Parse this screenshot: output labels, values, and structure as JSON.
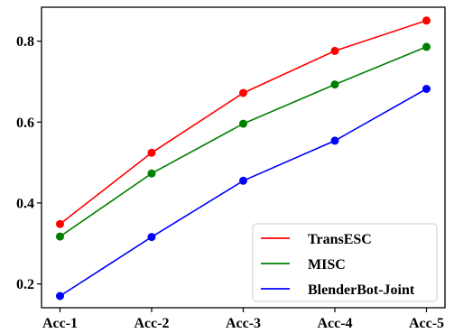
{
  "chart_data": {
    "type": "line",
    "categories": [
      "Acc-1",
      "Acc-2",
      "Acc-3",
      "Acc-4",
      "Acc-5"
    ],
    "series": [
      {
        "name": "TransESC",
        "color": "#ff0000",
        "values": [
          0.348,
          0.524,
          0.672,
          0.776,
          0.851
        ]
      },
      {
        "name": "MISC",
        "color": "#008000",
        "values": [
          0.317,
          0.473,
          0.596,
          0.693,
          0.786
        ]
      },
      {
        "name": "BlenderBot-Joint",
        "color": "#0000ff",
        "values": [
          0.17,
          0.316,
          0.455,
          0.554,
          0.682
        ]
      }
    ],
    "yticks": [
      0.2,
      0.4,
      0.6,
      0.8
    ],
    "ytick_labels": [
      "0.2",
      "0.4",
      "0.6",
      "0.8"
    ],
    "ylim": [
      0.141,
      0.884
    ],
    "grid": false,
    "legend_position": "lower-right",
    "title": "",
    "xlabel": "",
    "ylabel": ""
  }
}
